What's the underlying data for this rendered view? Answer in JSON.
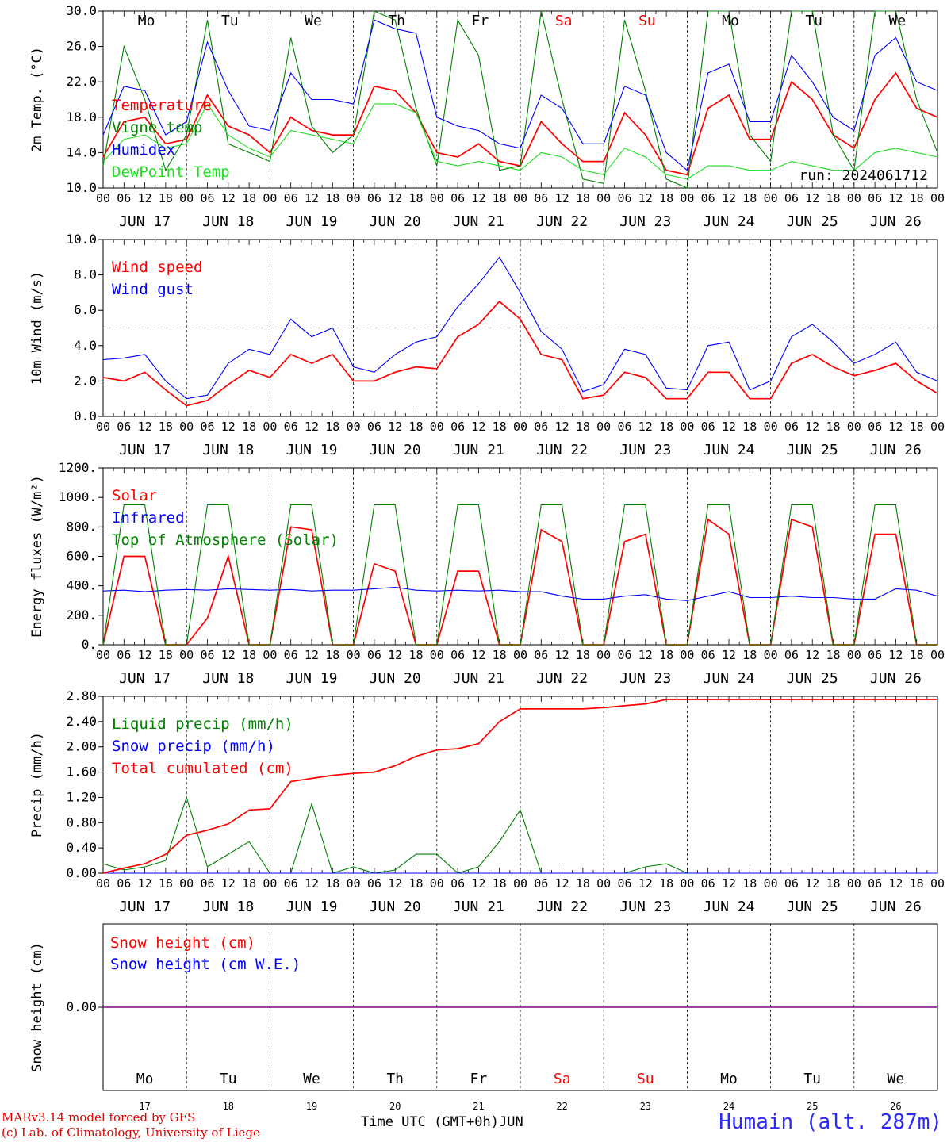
{
  "run_label": "run: 2024061712",
  "days": [
    "Mo",
    "Tu",
    "We",
    "Th",
    "Fr",
    "Sa",
    "Su",
    "Mo",
    "Tu",
    "We"
  ],
  "weekend_days": [
    "Sa",
    "Su"
  ],
  "dates": [
    "JUN 17",
    "JUN 18",
    "JUN 19",
    "JUN 20",
    "JUN 21",
    "JUN 22",
    "JUN 23",
    "JUN 24",
    "JUN 25",
    "JUN 26"
  ],
  "date_numbers": [
    "17",
    "18",
    "19",
    "20",
    "21",
    "22",
    "23",
    "24",
    "25",
    "26"
  ],
  "hour_ticks": [
    "00",
    "06",
    "12",
    "18"
  ],
  "footer": {
    "line1": "MARv3.14 model forced by GFS",
    "line2": "(c) Lab. of Climatology, University of Liege",
    "xlabel": "Time UTC (GMT+0h)",
    "month": "JUN",
    "station": "Humain (alt. 287m)"
  },
  "colors": {
    "red": "#ff0000",
    "green": "#008000",
    "lightgreen": "#22dd22",
    "blue": "#0000ff",
    "purple": "#800080"
  },
  "chart_data": [
    {
      "type": "line",
      "ylabel": "2m Temp. (°C)",
      "ylim": [
        10,
        30
      ],
      "yticks": [
        "10.0",
        "14.0",
        "18.0",
        "22.0",
        "26.0",
        "30.0"
      ],
      "x_step_hours": 6,
      "series": [
        {
          "name": "Temperature",
          "color": "#ff0000",
          "values": [
            13.5,
            17.5,
            18.0,
            15.0,
            15.5,
            20.5,
            17.0,
            16.0,
            14.0,
            18.0,
            16.5,
            16.0,
            16.0,
            21.5,
            21.0,
            18.5,
            14.0,
            13.5,
            15.0,
            13.0,
            12.5,
            17.5,
            15.0,
            13.0,
            13.0,
            18.5,
            16.0,
            12.0,
            11.5,
            19.0,
            20.5,
            15.5,
            15.5,
            22.0,
            20.0,
            16.0,
            14.5,
            20.0,
            23.0,
            19.0,
            18.0
          ]
        },
        {
          "name": "Vigne temp",
          "color": "#008000",
          "values": [
            12.5,
            26.0,
            20.0,
            12.0,
            16.0,
            29.0,
            15.0,
            14.0,
            13.0,
            27.0,
            17.0,
            14.0,
            16.0,
            30.0,
            29.0,
            19.0,
            12.5,
            29.0,
            25.0,
            12.0,
            12.5,
            30.0,
            20.0,
            11.0,
            10.5,
            29.0,
            21.0,
            11.0,
            10.0,
            30.0,
            30.0,
            16.0,
            13.0,
            30.0,
            30.0,
            16.0,
            12.0,
            30.0,
            30.0,
            20.0,
            14.0
          ]
        },
        {
          "name": "Humidex",
          "color": "#0000ff",
          "values": [
            16.0,
            21.5,
            21.0,
            16.0,
            17.5,
            26.5,
            21.0,
            17.0,
            16.5,
            23.0,
            20.0,
            20.0,
            19.5,
            29.0,
            28.0,
            27.5,
            18.0,
            17.0,
            16.5,
            15.0,
            14.5,
            20.5,
            19.0,
            15.0,
            15.0,
            21.5,
            20.5,
            14.0,
            12.0,
            23.0,
            24.0,
            17.5,
            17.5,
            25.0,
            22.0,
            18.0,
            16.5,
            25.0,
            27.0,
            22.0,
            21.0
          ]
        },
        {
          "name": "DewPoint Temp",
          "color": "#22dd22",
          "values": [
            13.0,
            15.5,
            16.0,
            14.5,
            15.0,
            19.5,
            16.0,
            14.5,
            13.5,
            16.5,
            16.0,
            15.5,
            15.0,
            19.5,
            19.5,
            18.5,
            13.0,
            12.5,
            13.0,
            12.5,
            12.0,
            14.0,
            13.5,
            12.0,
            11.5,
            14.5,
            13.5,
            11.5,
            11.0,
            12.5,
            12.5,
            12.0,
            12.0,
            13.0,
            12.5,
            12.0,
            12.0,
            14.0,
            14.5,
            14.0,
            13.5
          ]
        }
      ]
    },
    {
      "type": "line",
      "ylabel": "10m Wind (m/s)",
      "ylim": [
        0,
        10
      ],
      "yticks": [
        "0.0",
        "2.0",
        "4.0",
        "6.0",
        "8.0",
        "10.0"
      ],
      "reference_line": 5,
      "x_step_hours": 6,
      "series": [
        {
          "name": "Wind speed",
          "color": "#ff0000",
          "values": [
            2.2,
            2.0,
            2.5,
            1.5,
            0.6,
            0.9,
            1.8,
            2.6,
            2.2,
            3.5,
            3.0,
            3.5,
            2.0,
            2.0,
            2.5,
            2.8,
            2.7,
            4.5,
            5.2,
            6.5,
            5.5,
            3.5,
            3.2,
            1.0,
            1.2,
            2.5,
            2.2,
            1.0,
            1.0,
            2.5,
            2.5,
            1.0,
            1.0,
            3.0,
            3.5,
            2.8,
            2.3,
            2.6,
            3.0,
            2.0,
            1.3
          ]
        },
        {
          "name": "Wind gust",
          "color": "#0000ff",
          "values": [
            3.2,
            3.3,
            3.5,
            2.0,
            1.0,
            1.2,
            3.0,
            3.8,
            3.5,
            5.5,
            4.5,
            5.0,
            2.8,
            2.5,
            3.5,
            4.2,
            4.5,
            6.2,
            7.5,
            9.0,
            7.0,
            4.8,
            3.8,
            1.4,
            1.8,
            3.8,
            3.5,
            1.6,
            1.5,
            4.0,
            4.2,
            1.5,
            2.0,
            4.5,
            5.2,
            4.2,
            3.0,
            3.5,
            4.2,
            2.5,
            2.0
          ]
        }
      ]
    },
    {
      "type": "line",
      "ylabel": "Energy fluxes (W/m²)",
      "ylim": [
        0,
        1200
      ],
      "yticks": [
        "0.",
        "200.",
        "400.",
        "600.",
        "800.",
        "1000.",
        "1200."
      ],
      "x_step_hours": 6,
      "series": [
        {
          "name": "Solar",
          "color": "#ff0000",
          "values": [
            0,
            600,
            600,
            0,
            0,
            180,
            600,
            0,
            0,
            800,
            780,
            0,
            0,
            550,
            500,
            0,
            0,
            500,
            500,
            0,
            0,
            780,
            700,
            0,
            0,
            700,
            750,
            0,
            0,
            850,
            750,
            0,
            0,
            850,
            800,
            0,
            0,
            750,
            750,
            0,
            0
          ]
        },
        {
          "name": "Infrared",
          "color": "#0000ff",
          "values": [
            365,
            370,
            360,
            370,
            375,
            370,
            380,
            375,
            370,
            375,
            365,
            370,
            370,
            380,
            390,
            370,
            365,
            370,
            365,
            370,
            360,
            360,
            330,
            310,
            310,
            330,
            340,
            310,
            300,
            330,
            360,
            320,
            320,
            330,
            320,
            320,
            310,
            310,
            380,
            370,
            330
          ]
        },
        {
          "name": "Top of Atmosphere (Solar)",
          "color": "#008000",
          "values": [
            0,
            950,
            950,
            0,
            0,
            950,
            950,
            0,
            0,
            950,
            950,
            0,
            0,
            950,
            950,
            0,
            0,
            950,
            950,
            0,
            0,
            950,
            950,
            0,
            0,
            950,
            950,
            0,
            0,
            950,
            950,
            0,
            0,
            950,
            950,
            0,
            0,
            950,
            950,
            0,
            0
          ]
        }
      ]
    },
    {
      "type": "line",
      "ylabel": "Precip (mm/h)",
      "ylim": [
        0,
        2.8
      ],
      "yticks": [
        "0.00",
        "0.40",
        "0.80",
        "1.20",
        "1.60",
        "2.00",
        "2.40",
        "2.80"
      ],
      "x_step_hours": 6,
      "series": [
        {
          "name": "Liquid precip (mm/h)",
          "color": "#008000",
          "values": [
            0.15,
            0.05,
            0.1,
            0.2,
            1.2,
            0.1,
            0.3,
            0.5,
            0.0,
            0.0,
            1.1,
            0.0,
            0.1,
            0.0,
            0.05,
            0.3,
            0.3,
            0.0,
            0.1,
            0.5,
            1.0,
            0.0,
            0.0,
            0.0,
            0.0,
            0.0,
            0.1,
            0.15,
            0.0,
            0.0,
            0.0,
            0.0,
            0.0,
            0.0,
            0.0,
            0.0,
            0.0,
            0.0,
            0.0,
            0.0,
            0.0
          ]
        },
        {
          "name": "Snow precip (mm/h)",
          "color": "#0000ff",
          "values": [
            0,
            0,
            0,
            0,
            0,
            0,
            0,
            0,
            0,
            0,
            0,
            0,
            0,
            0,
            0,
            0,
            0,
            0,
            0,
            0,
            0,
            0,
            0,
            0,
            0,
            0,
            0,
            0,
            0,
            0,
            0,
            0,
            0,
            0,
            0,
            0,
            0,
            0,
            0,
            0,
            0
          ]
        },
        {
          "name": "Total cumulated (cm)",
          "color": "#ff0000",
          "values": [
            0.0,
            0.08,
            0.15,
            0.3,
            0.6,
            0.68,
            0.78,
            1.0,
            1.02,
            1.45,
            1.5,
            1.55,
            1.58,
            1.6,
            1.7,
            1.85,
            1.95,
            1.97,
            2.05,
            2.4,
            2.6,
            2.6,
            2.6,
            2.6,
            2.62,
            2.65,
            2.68,
            2.75,
            2.75,
            2.75,
            2.75,
            2.75,
            2.75,
            2.75,
            2.75,
            2.75,
            2.75,
            2.75,
            2.75,
            2.75,
            2.75
          ]
        }
      ]
    },
    {
      "type": "line",
      "ylabel": "Snow height (cm)",
      "yticks": [
        "0.00"
      ],
      "x_step_hours": 6,
      "series": [
        {
          "name": "Snow height (cm)",
          "color": "#ff0000",
          "values": [
            0,
            0,
            0,
            0,
            0,
            0,
            0,
            0,
            0,
            0,
            0,
            0,
            0,
            0,
            0,
            0,
            0,
            0,
            0,
            0,
            0,
            0,
            0,
            0,
            0,
            0,
            0,
            0,
            0,
            0,
            0,
            0,
            0,
            0,
            0,
            0,
            0,
            0,
            0,
            0,
            0
          ]
        },
        {
          "name": "Snow height (cm W.E.)",
          "color": "#0000ff",
          "values": [
            0,
            0,
            0,
            0,
            0,
            0,
            0,
            0,
            0,
            0,
            0,
            0,
            0,
            0,
            0,
            0,
            0,
            0,
            0,
            0,
            0,
            0,
            0,
            0,
            0,
            0,
            0,
            0,
            0,
            0,
            0,
            0,
            0,
            0,
            0,
            0,
            0,
            0,
            0,
            0,
            0
          ]
        }
      ]
    }
  ]
}
